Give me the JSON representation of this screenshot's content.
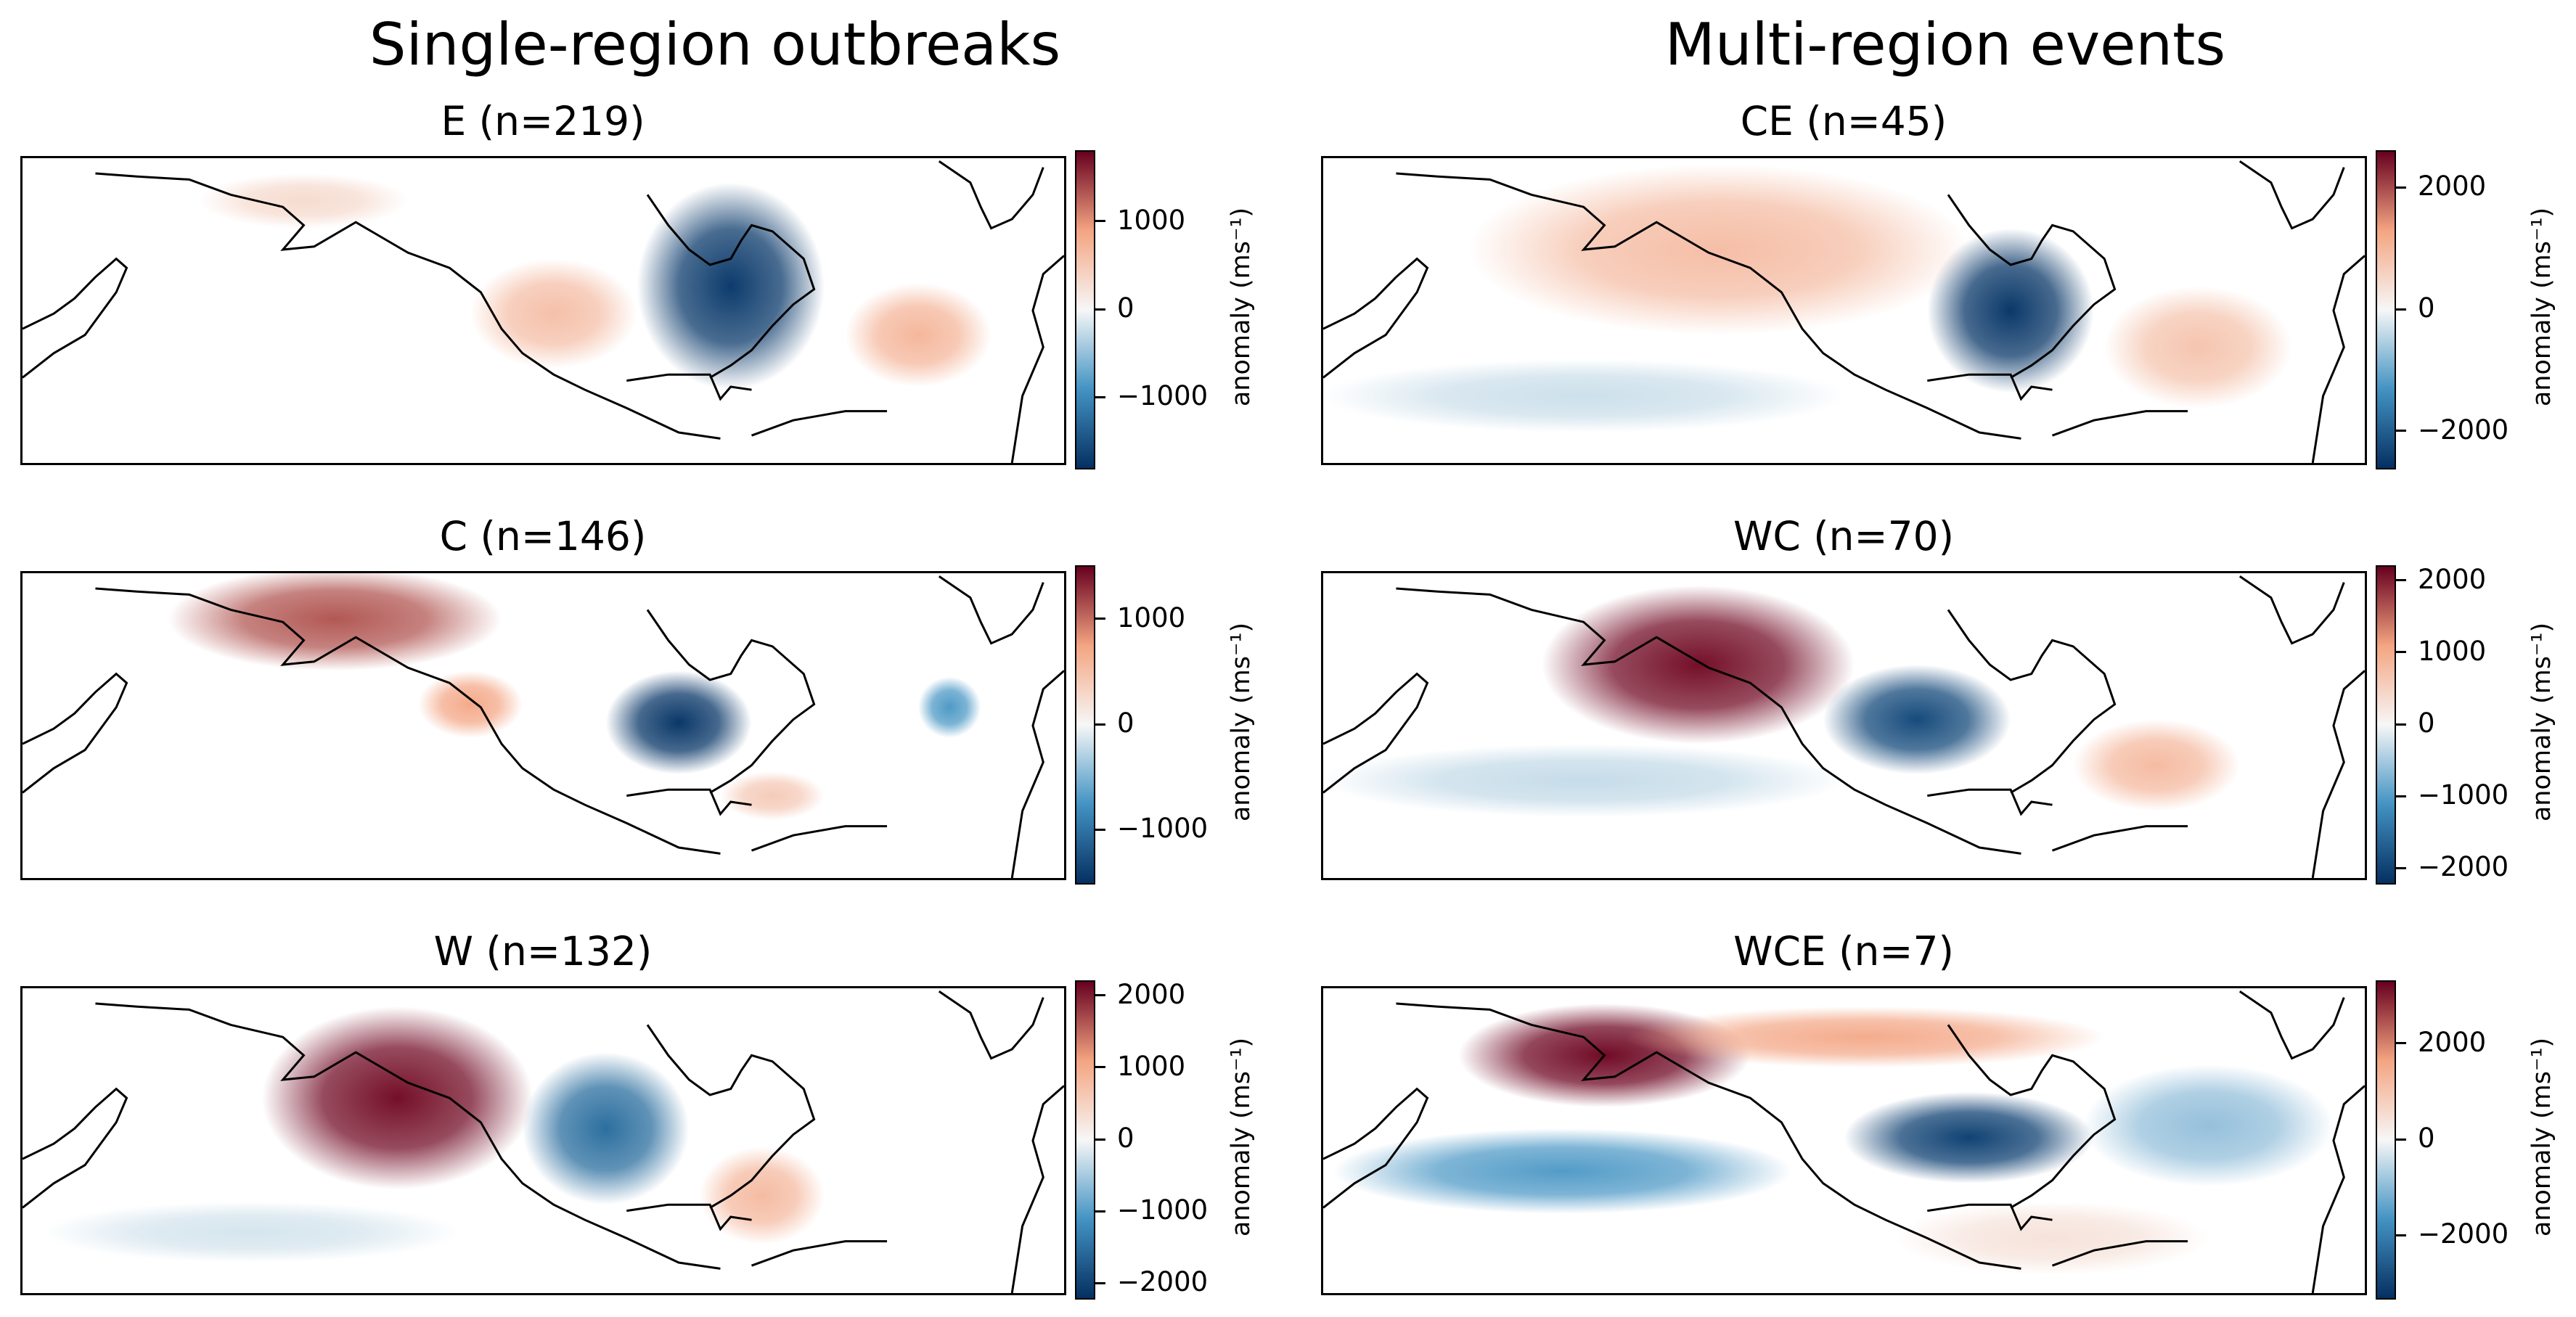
{
  "column_titles": {
    "left": "Single-region outbreaks",
    "right": "Multi-region events"
  },
  "colorbar_label": "anomaly (ms⁻¹)",
  "colormap": {
    "name": "RdBu_r",
    "negative_dark": "#053061",
    "negative_mid": "#4393c3",
    "neutral": "#f7f7f7",
    "positive_mid": "#f4a582",
    "positive_dark": "#67001f"
  },
  "chart_data": [
    {
      "type": "heatmap",
      "title": "E (n=219)",
      "column": "Single-region outbreaks",
      "ticks": [
        "1000",
        "0",
        "−1000"
      ],
      "tick_values": [
        1000,
        0,
        -1000
      ],
      "vlim": [
        -1800,
        1800
      ],
      "blobs": [
        {
          "region": "eastern North America",
          "sign": "negative",
          "value": -1700
        },
        {
          "region": "Pacific northwest coast",
          "sign": "positive",
          "value": 600
        },
        {
          "region": "western North Atlantic",
          "sign": "positive",
          "value": 700
        },
        {
          "region": "Canadian Arctic / Greenland",
          "sign": "positive",
          "value": 300
        }
      ]
    },
    {
      "type": "heatmap",
      "title": "CE (n=45)",
      "column": "Multi-region events",
      "ticks": [
        "2000",
        "0",
        "−2000"
      ],
      "tick_values": [
        2000,
        0,
        -2000
      ],
      "vlim": [
        -2600,
        2600
      ],
      "blobs": [
        {
          "region": "eastern North America",
          "sign": "negative",
          "value": -2500
        },
        {
          "region": "Alaska to western Canada band",
          "sign": "positive",
          "value": 900
        },
        {
          "region": "western North Atlantic",
          "sign": "positive",
          "value": 800
        },
        {
          "region": "subtropical North Pacific",
          "sign": "negative",
          "value": -300
        }
      ]
    },
    {
      "type": "heatmap",
      "title": "C (n=146)",
      "column": "Single-region outbreaks",
      "ticks": [
        "1000",
        "0",
        "−1000"
      ],
      "tick_values": [
        1000,
        0,
        -1000
      ],
      "vlim": [
        -1500,
        1500
      ],
      "blobs": [
        {
          "region": "central United States",
          "sign": "negative",
          "value": -1450
        },
        {
          "region": "Alaska / Bering Sea",
          "sign": "positive",
          "value": 1100
        },
        {
          "region": "Pacific northwest coast",
          "sign": "positive",
          "value": 700
        },
        {
          "region": "central North Atlantic",
          "sign": "negative",
          "value": -700
        },
        {
          "region": "southeast US / western Atlantic",
          "sign": "positive",
          "value": 400
        }
      ]
    },
    {
      "type": "heatmap",
      "title": "WC (n=70)",
      "column": "Multi-region events",
      "ticks": [
        "2000",
        "1000",
        "0",
        "−1000",
        "−2000"
      ],
      "tick_values": [
        2000,
        1000,
        0,
        -1000,
        -2000
      ],
      "vlim": [
        -2200,
        2200
      ],
      "blobs": [
        {
          "region": "Gulf of Alaska / western Canada",
          "sign": "positive",
          "value": 2100
        },
        {
          "region": "central United States",
          "sign": "negative",
          "value": -1900
        },
        {
          "region": "western North Atlantic",
          "sign": "positive",
          "value": 800
        },
        {
          "region": "subtropical North Pacific",
          "sign": "negative",
          "value": -300
        }
      ]
    },
    {
      "type": "heatmap",
      "title": "W (n=132)",
      "column": "Single-region outbreaks",
      "ticks": [
        "2000",
        "1000",
        "0",
        "−1000",
        "−2000"
      ],
      "tick_values": [
        2000,
        1000,
        0,
        -1000,
        -2000
      ],
      "vlim": [
        -2200,
        2200
      ],
      "blobs": [
        {
          "region": "Gulf of Alaska",
          "sign": "positive",
          "value": 2100
        },
        {
          "region": "western United States",
          "sign": "negative",
          "value": -1500
        },
        {
          "region": "western North Atlantic",
          "sign": "positive",
          "value": 800
        },
        {
          "region": "subtropical North Pacific",
          "sign": "negative",
          "value": -200
        }
      ]
    },
    {
      "type": "heatmap",
      "title": "WCE (n=7)",
      "column": "Multi-region events",
      "ticks": [
        "2000",
        "0",
        "−2000"
      ],
      "tick_values": [
        2000,
        0,
        -2000
      ],
      "vlim": [
        -3300,
        3300
      ],
      "blobs": [
        {
          "region": "Bering Sea / Alaska",
          "sign": "positive",
          "value": 3200
        },
        {
          "region": "Arctic band",
          "sign": "positive",
          "value": 1500
        },
        {
          "region": "eastern North America",
          "sign": "negative",
          "value": -3000
        },
        {
          "region": "subtropical North Pacific",
          "sign": "negative",
          "value": -1500
        },
        {
          "region": "North Atlantic",
          "sign": "negative",
          "value": -900
        },
        {
          "region": "eastern subtropical Pacific",
          "sign": "positive",
          "value": 400
        }
      ]
    }
  ]
}
